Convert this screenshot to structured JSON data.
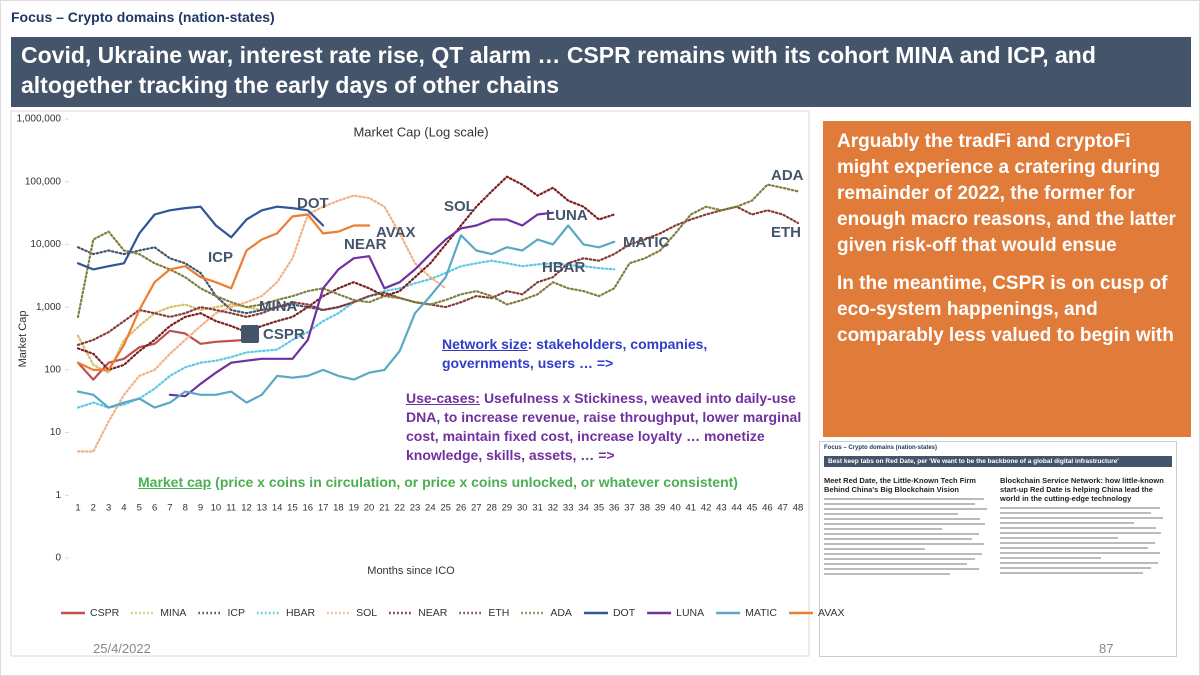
{
  "header": {
    "section": "Focus – Crypto domains (nation-states)",
    "title": "Covid, Ukraine war, interest rate rise, QT alarm … CSPR remains with its cohort MINA and ICP, and altogether tracking the early days of other chains"
  },
  "side_box": {
    "paragraphs": [
      "Arguably the tradFi and cryptoFi might experience a cratering during remainder of 2022, the former for enough macro reasons, and the latter given risk-off that would ensue",
      "In the meantime, CSPR is on cusp of eco-system happenings, and comparably less valued to begin with"
    ]
  },
  "thumbnail": {
    "section": "Focus – Crypto domains (nation-states)",
    "banner": "Best keep tabs on Red Date, per 'We want to be the backbone of a global digital infrastructure'",
    "left_headline": "Meet Red Date, the Little-Known Tech Firm Behind China's Big Blockchain Vision",
    "right_headline": "Blockchain Service Network: how little-known start-up Red Date is helping China lead the world in the cutting-edge technology"
  },
  "footer": {
    "date": "25/4/2022",
    "page": "87"
  },
  "chart_data": {
    "type": "line",
    "title": "Market Cap (Log scale)",
    "y_label": "Market Cap",
    "x_label": "Months since ICO",
    "log_scale": true,
    "grid": false,
    "categories": [
      1,
      2,
      3,
      4,
      5,
      6,
      7,
      8,
      9,
      10,
      11,
      12,
      13,
      14,
      15,
      16,
      17,
      18,
      19,
      20,
      21,
      22,
      23,
      24,
      25,
      26,
      27,
      28,
      29,
      30,
      31,
      32,
      33,
      34,
      35,
      36,
      37,
      38,
      39,
      40,
      41,
      42,
      43,
      44,
      45,
      46,
      47,
      48
    ],
    "ylim": [
      0.1,
      1000000
    ],
    "yticks": [
      {
        "value": 0.1,
        "label": "0"
      },
      1,
      10,
      100,
      {
        "value": 1000,
        "label": "1,000"
      },
      {
        "value": 10000,
        "label": "10,000"
      },
      {
        "value": 100000,
        "label": "100,000"
      },
      {
        "value": 1000000,
        "label": "1,000,000"
      }
    ],
    "series": [
      {
        "name": "CSPR",
        "color": "#c0504d",
        "style": "solid",
        "values": [
          130,
          70,
          130,
          150,
          230,
          260,
          420,
          380,
          260,
          280,
          290,
          300,
          null,
          null,
          null,
          null,
          null,
          null,
          null,
          null,
          null,
          null,
          null,
          null,
          null,
          null,
          null,
          null,
          null,
          null,
          null,
          null,
          null,
          null,
          null,
          null,
          null,
          null,
          null,
          null,
          null,
          null,
          null,
          null,
          null,
          null,
          null,
          null
        ]
      },
      {
        "name": "MINA",
        "color": "#d4c06a",
        "style": "dotted",
        "values": [
          350,
          120,
          90,
          300,
          500,
          800,
          1000,
          1100,
          900,
          1000,
          1100,
          1000,
          900,
          null,
          null,
          null,
          null,
          null,
          null,
          null,
          null,
          null,
          null,
          null,
          null,
          null,
          null,
          null,
          null,
          null,
          null,
          null,
          null,
          null,
          null,
          null,
          null,
          null,
          null,
          null,
          null,
          null,
          null,
          null,
          null,
          null,
          null,
          null
        ]
      },
      {
        "name": "ICP",
        "color": "#44546a",
        "style": "dotted",
        "values": [
          9000,
          7000,
          8000,
          7000,
          8000,
          9000,
          6000,
          5000,
          3500,
          1500,
          900,
          800,
          900,
          1000,
          1100,
          1000,
          900,
          1000,
          1200,
          1500,
          null,
          null,
          null,
          null,
          null,
          null,
          null,
          null,
          null,
          null,
          null,
          null,
          null,
          null,
          null,
          null,
          null,
          null,
          null,
          null,
          null,
          null,
          null,
          null,
          null,
          null,
          null,
          null
        ]
      },
      {
        "name": "HBAR",
        "color": "#5bc8e6",
        "style": "dotted",
        "values": [
          25,
          30,
          25,
          28,
          35,
          50,
          80,
          110,
          130,
          140,
          160,
          190,
          200,
          210,
          300,
          400,
          600,
          800,
          1200,
          1500,
          1800,
          2000,
          2400,
          2800,
          3500,
          4500,
          5000,
          5500,
          5000,
          4500,
          4800,
          5000,
          4700,
          4500,
          4200,
          4000,
          null,
          null,
          null,
          null,
          null,
          null,
          null,
          null,
          null,
          null,
          null,
          null
        ]
      },
      {
        "name": "SOL",
        "color": "#f4b183",
        "style": "dotted",
        "values": [
          5,
          5,
          15,
          40,
          80,
          100,
          180,
          300,
          500,
          800,
          1000,
          1200,
          1500,
          2500,
          6000,
          30000,
          40000,
          50000,
          60000,
          55000,
          40000,
          15000,
          5000,
          3000,
          2000,
          null,
          null,
          null,
          null,
          null,
          null,
          null,
          null,
          null,
          null,
          null,
          null,
          null,
          null,
          null,
          null,
          null,
          null,
          null,
          null,
          null,
          null,
          null
        ]
      },
      {
        "name": "NEAR",
        "color": "#7b1f1f",
        "style": "dotted",
        "values": [
          220,
          180,
          100,
          120,
          200,
          300,
          500,
          700,
          800,
          600,
          500,
          400,
          500,
          600,
          700,
          1000,
          1500,
          2000,
          2500,
          2000,
          1500,
          1800,
          3000,
          5000,
          10000,
          20000,
          40000,
          70000,
          120000,
          90000,
          60000,
          80000,
          50000,
          40000,
          25000,
          30000,
          null,
          null,
          null,
          null,
          null,
          null,
          null,
          null,
          null,
          null,
          null,
          null
        ]
      },
      {
        "name": "ETH",
        "color": "#843c39",
        "style": "dotted",
        "values": [
          250,
          300,
          400,
          600,
          900,
          800,
          700,
          800,
          1000,
          900,
          800,
          700,
          800,
          1000,
          1200,
          1100,
          900,
          1000,
          1200,
          1500,
          1700,
          1400,
          1200,
          1100,
          1000,
          1200,
          1500,
          1400,
          1800,
          1600,
          2500,
          3000,
          5000,
          6000,
          5500,
          7000,
          10000,
          12000,
          15000,
          20000,
          25000,
          30000,
          35000,
          40000,
          30000,
          35000,
          30000,
          22000
        ]
      },
      {
        "name": "ADA",
        "color": "#7f7f3f",
        "style": "dotted",
        "values": [
          700,
          12000,
          16000,
          8000,
          7000,
          5000,
          4000,
          3000,
          2000,
          1500,
          1200,
          1000,
          1100,
          1300,
          1500,
          1800,
          2000,
          1600,
          1300,
          1200,
          1500,
          1400,
          1200,
          1100,
          1300,
          1600,
          1800,
          1500,
          1100,
          1300,
          1600,
          2500,
          2000,
          1800,
          1500,
          2000,
          5000,
          6000,
          8000,
          15000,
          30000,
          40000,
          35000,
          40000,
          50000,
          90000,
          80000,
          70000
        ]
      },
      {
        "name": "DOT",
        "color": "#2f5597",
        "style": "solid",
        "values": [
          5000,
          4000,
          4500,
          5000,
          15000,
          30000,
          35000,
          38000,
          40000,
          20000,
          13000,
          25000,
          35000,
          40000,
          38000,
          35000,
          20000,
          null,
          null,
          null,
          null,
          null,
          null,
          null,
          null,
          null,
          null,
          null,
          null,
          null,
          null,
          null,
          null,
          null,
          null,
          null,
          null,
          null,
          null,
          null,
          null,
          null,
          null,
          null,
          null,
          null,
          null,
          null
        ]
      },
      {
        "name": "LUNA",
        "color": "#7030a0",
        "style": "solid",
        "values": [
          null,
          null,
          null,
          null,
          null,
          null,
          40,
          38,
          60,
          90,
          130,
          140,
          150,
          150,
          150,
          300,
          2000,
          4000,
          6000,
          6500,
          2000,
          2500,
          4000,
          7000,
          12000,
          18000,
          20000,
          25000,
          25000,
          20000,
          30000,
          32000,
          null,
          null,
          null,
          null,
          null,
          null,
          null,
          null,
          null,
          null,
          null,
          null,
          null,
          null,
          null,
          null
        ]
      },
      {
        "name": "MATIC",
        "color": "#5ba8c4",
        "style": "solid",
        "values": [
          45,
          40,
          25,
          30,
          35,
          25,
          30,
          45,
          40,
          40,
          45,
          30,
          40,
          80,
          75,
          80,
          100,
          80,
          70,
          90,
          100,
          200,
          800,
          1500,
          3000,
          14000,
          8000,
          7000,
          9000,
          8000,
          12000,
          10000,
          20000,
          10000,
          9000,
          11000,
          null,
          null,
          null,
          null,
          null,
          null,
          null,
          null,
          null,
          null,
          null,
          null
        ]
      },
      {
        "name": "AVAX",
        "color": "#ed7d31",
        "style": "solid",
        "values": [
          130,
          100,
          100,
          250,
          900,
          2500,
          4000,
          4500,
          3000,
          2500,
          2000,
          8000,
          12000,
          15000,
          28000,
          30000,
          15000,
          16000,
          20000,
          20000,
          null,
          null,
          null,
          null,
          null,
          null,
          null,
          null,
          null,
          null,
          null,
          null,
          null,
          null,
          null,
          null,
          null,
          null,
          null,
          null,
          null,
          null,
          null,
          null,
          null,
          null,
          null,
          null
        ]
      }
    ],
    "annotations": [
      {
        "heading": "Network size",
        "text": ": stakeholders, companies, governments, users … =>",
        "color": "#2e3ec9"
      },
      {
        "heading": "Use-cases:",
        "text": "Usefulness x Stickiness, weaved into daily-use DNA, to increase revenue, raise throughput, lower marginal cost, maintain fixed cost, increase loyalty … monetize knowledge, skills, assets, … =>",
        "color": "#7030a0"
      },
      {
        "heading": "Market cap",
        "text": "(price x coins in circulation, or price x coins unlocked, or whatever consistent)",
        "color": "#4caf50"
      }
    ]
  }
}
